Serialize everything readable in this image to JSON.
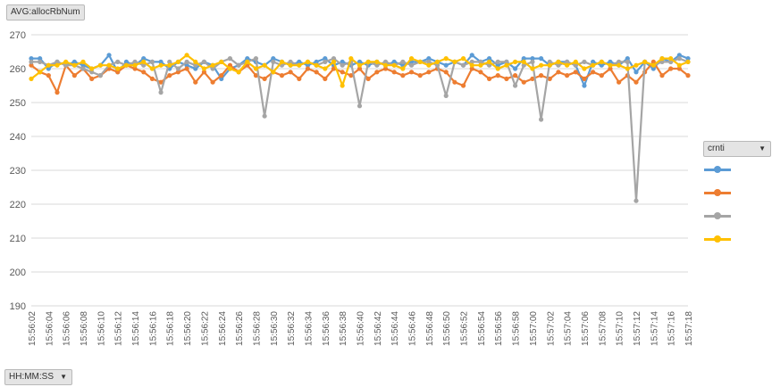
{
  "chart_data": {
    "type": "line",
    "title": "",
    "value_field": "AVG:allocRbNum",
    "axis_field": "HH:MM:SS",
    "legend_field": "crnti",
    "ylim": [
      190,
      270
    ],
    "yticks": [
      190,
      200,
      210,
      220,
      230,
      240,
      250,
      260,
      270
    ],
    "grid": true,
    "legend_position": "right",
    "x": [
      "15:56:02",
      "15:56:03",
      "15:56:04",
      "15:56:05",
      "15:56:06",
      "15:56:07",
      "15:56:08",
      "15:56:09",
      "15:56:10",
      "15:56:11",
      "15:56:12",
      "15:56:13",
      "15:56:14",
      "15:56:15",
      "15:56:16",
      "15:56:17",
      "15:56:18",
      "15:56:19",
      "15:56:20",
      "15:56:21",
      "15:56:22",
      "15:56:23",
      "15:56:24",
      "15:56:25",
      "15:56:26",
      "15:56:27",
      "15:56:28",
      "15:56:29",
      "15:56:30",
      "15:56:31",
      "15:56:32",
      "15:56:33",
      "15:56:34",
      "15:56:35",
      "15:56:36",
      "15:56:37",
      "15:56:38",
      "15:56:39",
      "15:56:40",
      "15:56:41",
      "15:56:42",
      "15:56:43",
      "15:56:44",
      "15:56:45",
      "15:56:46",
      "15:56:47",
      "15:56:48",
      "15:56:49",
      "15:56:50",
      "15:56:51",
      "15:56:52",
      "15:56:53",
      "15:56:54",
      "15:56:55",
      "15:56:56",
      "15:56:57",
      "15:56:58",
      "15:56:59",
      "15:57:00",
      "15:57:01",
      "15:57:02",
      "15:57:03",
      "15:57:04",
      "15:57:05",
      "15:57:06",
      "15:57:07",
      "15:57:08",
      "15:57:09",
      "15:57:10",
      "15:57:11",
      "15:57:12",
      "15:57:13",
      "15:57:14",
      "15:57:15",
      "15:57:16",
      "15:57:17",
      "15:57:18"
    ],
    "series": [
      {
        "name": "",
        "color": "#5b9bd5",
        "values": [
          263,
          263,
          260,
          262,
          261,
          262,
          261,
          260,
          261,
          264,
          259,
          262,
          261,
          263,
          262,
          262,
          260,
          262,
          261,
          260,
          262,
          261,
          257,
          260,
          261,
          263,
          262,
          261,
          263,
          262,
          261,
          262,
          261,
          262,
          263,
          261,
          262,
          261,
          262,
          261,
          262,
          261,
          262,
          261,
          262,
          262,
          263,
          262,
          261,
          262,
          261,
          264,
          262,
          263,
          261,
          262,
          260,
          263,
          263,
          263,
          261,
          262,
          262,
          261,
          255,
          262,
          261,
          262,
          261,
          263,
          259,
          262,
          260,
          263,
          262,
          264,
          263
        ]
      },
      {
        "name": "",
        "color": "#ed7d31",
        "values": [
          261,
          259,
          258,
          253,
          261,
          258,
          260,
          257,
          258,
          260,
          259,
          261,
          260,
          259,
          257,
          256,
          258,
          259,
          260,
          256,
          259,
          256,
          258,
          261,
          259,
          261,
          258,
          257,
          259,
          258,
          259,
          257,
          260,
          259,
          257,
          260,
          259,
          258,
          260,
          257,
          259,
          260,
          259,
          258,
          259,
          258,
          259,
          260,
          259,
          256,
          255,
          260,
          259,
          257,
          258,
          257,
          258,
          256,
          257,
          258,
          257,
          259,
          258,
          259,
          257,
          259,
          258,
          260,
          256,
          258,
          256,
          259,
          262,
          258,
          260,
          260,
          258
        ]
      },
      {
        "name": "",
        "color": "#a5a5a5",
        "values": [
          262,
          262,
          261,
          262,
          261,
          261,
          260,
          259,
          258,
          261,
          262,
          261,
          262,
          261,
          262,
          253,
          262,
          260,
          262,
          261,
          262,
          260,
          262,
          263,
          261,
          262,
          263,
          246,
          262,
          261,
          262,
          261,
          262,
          261,
          262,
          263,
          261,
          262,
          249,
          262,
          261,
          262,
          261,
          262,
          261,
          262,
          262,
          261,
          252,
          262,
          261,
          262,
          262,
          261,
          262,
          262,
          255,
          261,
          262,
          245,
          262,
          261,
          262,
          261,
          262,
          261,
          262,
          261,
          262,
          262,
          221,
          262,
          261,
          262,
          262,
          263,
          262
        ]
      },
      {
        "name": "",
        "color": "#ffc000",
        "values": [
          257,
          259,
          261,
          261,
          262,
          261,
          262,
          260,
          261,
          261,
          260,
          261,
          261,
          262,
          260,
          261,
          261,
          262,
          264,
          262,
          260,
          261,
          262,
          260,
          259,
          262,
          260,
          261,
          259,
          262,
          261,
          261,
          262,
          261,
          260,
          262,
          255,
          263,
          261,
          262,
          262,
          261,
          261,
          260,
          263,
          262,
          261,
          262,
          263,
          262,
          263,
          261,
          261,
          262,
          260,
          261,
          262,
          262,
          260,
          261,
          261,
          262,
          261,
          262,
          260,
          261,
          262,
          261,
          261,
          260,
          261,
          262,
          261,
          263,
          263,
          261,
          262
        ]
      }
    ]
  }
}
